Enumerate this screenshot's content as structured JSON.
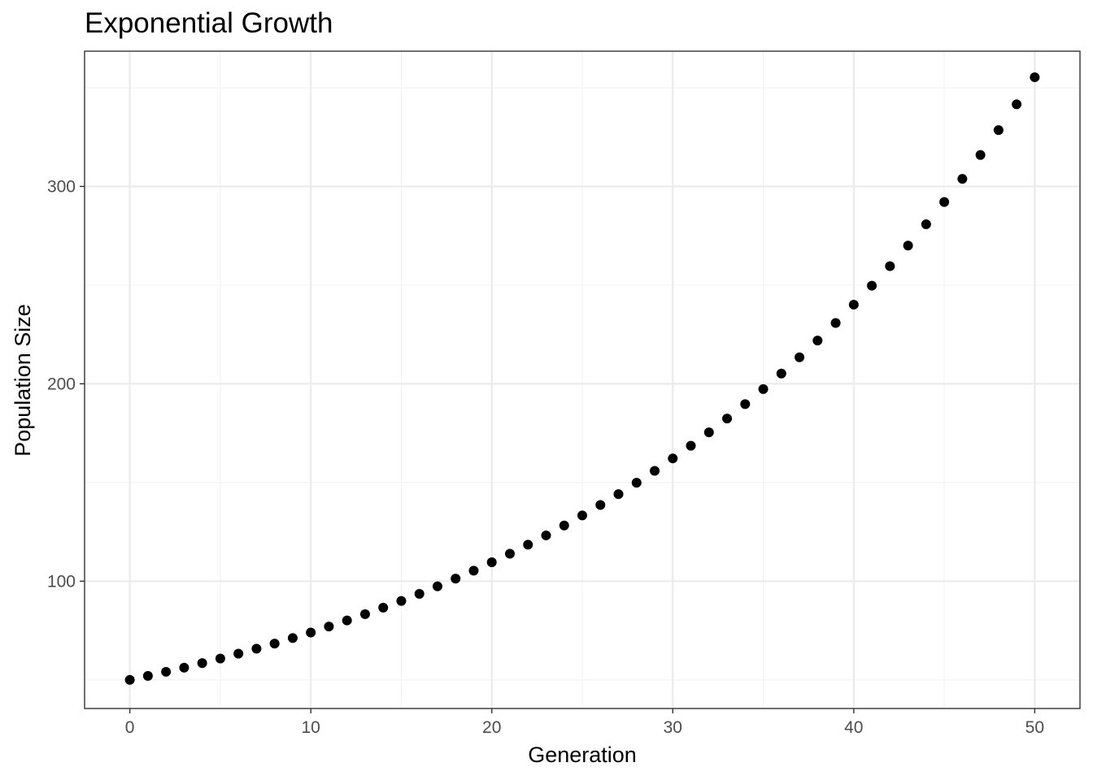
{
  "chart_data": {
    "type": "scatter",
    "title": "Exponential Growth",
    "xlabel": "Generation",
    "ylabel": "Population Size",
    "xlim": [
      -2.5,
      52.5
    ],
    "ylim": [
      35.5,
      368.5
    ],
    "x_ticks": [
      0,
      10,
      20,
      30,
      40,
      50
    ],
    "y_ticks": [
      100,
      200,
      300
    ],
    "x_tick_labels": [
      "0",
      "10",
      "20",
      "30",
      "40",
      "50"
    ],
    "y_tick_labels": [
      "100",
      "200",
      "300"
    ],
    "grid": true,
    "legend": "none",
    "point_color": "#000000",
    "series": [
      {
        "x": [
          0,
          1,
          2,
          3,
          4,
          5,
          6,
          7,
          8,
          9,
          10,
          11,
          12,
          13,
          14,
          15,
          16,
          17,
          18,
          19,
          20,
          21,
          22,
          23,
          24,
          25,
          26,
          27,
          28,
          29,
          30,
          31,
          32,
          33,
          34,
          35,
          36,
          37,
          38,
          39,
          40,
          41,
          42,
          43,
          44,
          45,
          46,
          47,
          48,
          49,
          50
        ],
        "y": [
          50,
          52,
          54.1,
          56.2,
          58.5,
          60.8,
          63.3,
          65.8,
          68.4,
          71.2,
          74,
          77,
          80.1,
          83.3,
          86.6,
          90,
          93.6,
          97.4,
          101.3,
          105.3,
          109.6,
          113.9,
          118.5,
          123.2,
          128.2,
          133.3,
          138.6,
          144.1,
          149.9,
          155.9,
          162.2,
          168.6,
          175.4,
          182.4,
          189.7,
          197.3,
          205.2,
          213.4,
          221.9,
          230.8,
          240.1,
          249.7,
          259.6,
          270,
          280.8,
          292.1,
          303.8,
          315.9,
          328.5,
          341.6,
          355.3
        ]
      }
    ]
  }
}
